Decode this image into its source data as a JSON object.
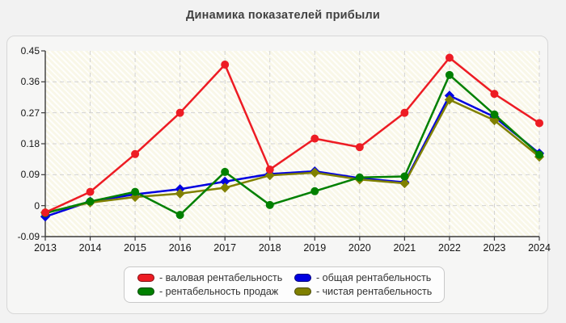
{
  "title": "Динамика показателей прибыли",
  "chart_data": {
    "type": "line",
    "x": [
      2013,
      2014,
      2015,
      2016,
      2017,
      2018,
      2019,
      2020,
      2021,
      2022,
      2023,
      2024
    ],
    "xlabel": "",
    "ylabel": "",
    "ylim": [
      -0.09,
      0.45
    ],
    "yticks": [
      -0.09,
      0,
      0.09,
      0.18,
      0.27,
      0.36,
      0.45
    ],
    "ytick_labels": [
      "-0.09",
      "0",
      "0.09",
      "0.18",
      "0.27",
      "0.36",
      "0.45"
    ],
    "grid": "dashed",
    "legend_position": "bottom",
    "series": [
      {
        "name": "валовая рентабельность",
        "legend_label": "- валовая рентабельность",
        "color": "#ed1c24",
        "marker": "circle",
        "values": [
          -0.02,
          0.04,
          0.15,
          0.27,
          0.41,
          0.105,
          0.195,
          0.17,
          0.27,
          0.43,
          0.325,
          0.24
        ]
      },
      {
        "name": "рентабельность продаж",
        "legend_label": "- рентабельность продаж",
        "color": "#008000",
        "marker": "circle",
        "values": [
          -0.022,
          0.012,
          0.04,
          -0.027,
          0.098,
          0.002,
          0.042,
          0.082,
          0.085,
          0.38,
          0.265,
          0.148
        ]
      },
      {
        "name": "общая рентабельность",
        "legend_label": "- общая рентабельность",
        "color": "#0000e0",
        "marker": "diamond",
        "values": [
          -0.032,
          0.012,
          0.033,
          0.048,
          0.07,
          0.092,
          0.1,
          0.08,
          0.068,
          0.32,
          0.258,
          0.152
        ]
      },
      {
        "name": "чистая рентабельность",
        "legend_label": "- чистая рентабельность",
        "color": "#808000",
        "marker": "diamond",
        "values": [
          -0.02,
          0.009,
          0.025,
          0.035,
          0.052,
          0.088,
          0.096,
          0.076,
          0.065,
          0.308,
          0.248,
          0.142
        ]
      }
    ],
    "legend_order": [
      0,
      2,
      1,
      3
    ],
    "draw_order": [
      2,
      3,
      1,
      0
    ]
  }
}
